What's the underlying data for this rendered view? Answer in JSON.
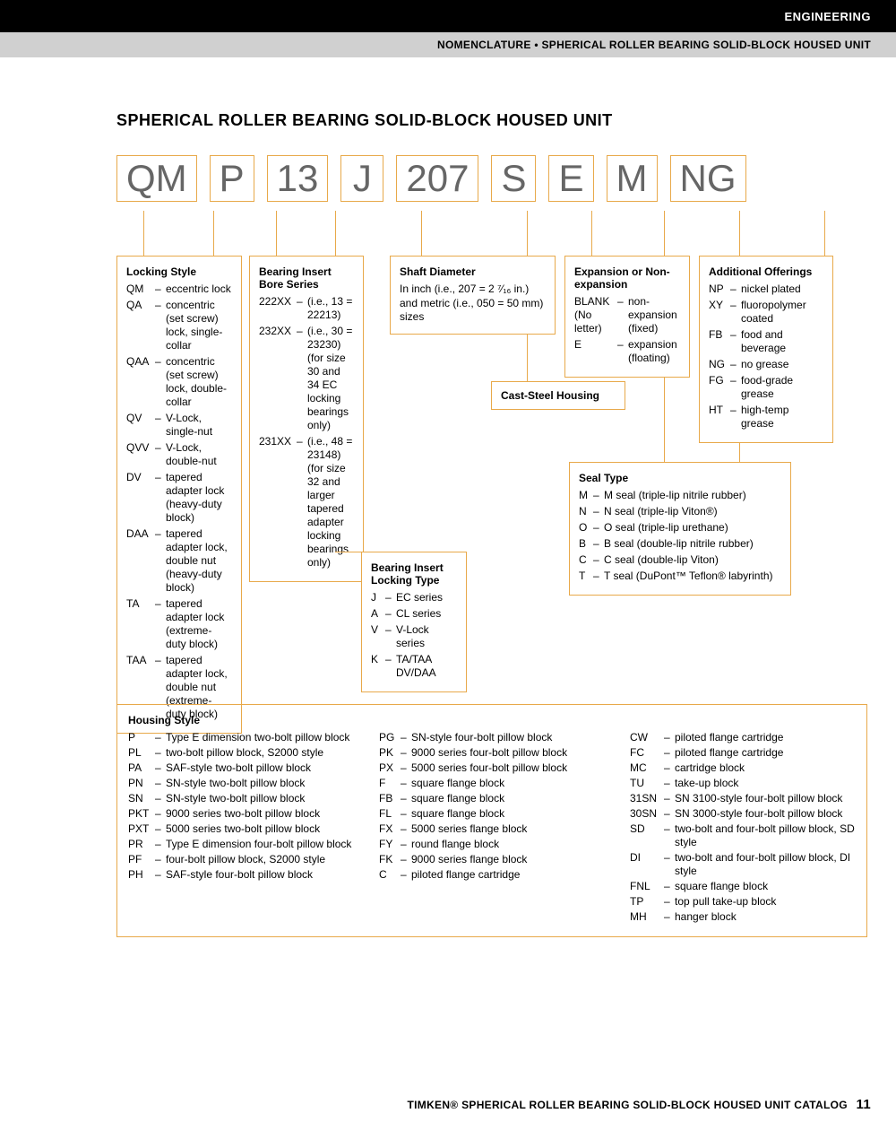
{
  "header": {
    "category": "ENGINEERING",
    "subheader": "NOMENCLATURE • SPHERICAL ROLLER BEARING SOLID-BLOCK HOUSED UNIT"
  },
  "main_title": "SPHERICAL ROLLER BEARING SOLID-BLOCK HOUSED UNIT",
  "code_parts": [
    "QM",
    "P",
    "13",
    "J",
    "207",
    "S",
    "E",
    "M",
    "NG"
  ],
  "boxes": {
    "locking_style": {
      "title": "Locking Style",
      "items": [
        {
          "code": "QM",
          "text": "eccentric lock"
        },
        {
          "code": "QA",
          "text": "concentric (set screw) lock, single-collar"
        },
        {
          "code": "QAA",
          "text": "concentric (set screw) lock, double-collar"
        },
        {
          "code": "QV",
          "text": "V-Lock, single-nut"
        },
        {
          "code": "QVV",
          "text": "V-Lock, double-nut"
        },
        {
          "code": "DV",
          "text": "tapered adapter lock (heavy-duty block)"
        },
        {
          "code": "DAA",
          "text": "tapered adapter lock, double nut (heavy-duty block)"
        },
        {
          "code": "TA",
          "text": "tapered adapter lock (extreme-duty block)"
        },
        {
          "code": "TAA",
          "text": "tapered adapter lock, double nut (extreme-duty block)"
        }
      ]
    },
    "bearing_insert_bore": {
      "title": "Bearing Insert Bore Series",
      "items": [
        {
          "code": "222XX",
          "text": "(i.e., 13 = 22213)"
        },
        {
          "code": "232XX",
          "text": "(i.e., 30 = 23230) (for size 30 and 34 EC locking bearings only)"
        },
        {
          "code": "231XX",
          "text": "(i.e., 48 = 23148) (for size 32 and larger tapered adapter locking bearings only)"
        }
      ]
    },
    "shaft_diameter": {
      "title": "Shaft Diameter",
      "text": "In inch (i.e., 207 = 2 ⁷⁄₁₆ in.) and metric (i.e., 050 = 50 mm) sizes"
    },
    "expansion": {
      "title": "Expansion or Non-expansion",
      "items": [
        {
          "code": "BLANK (No letter)",
          "text": "non-expansion (fixed)"
        },
        {
          "code": "E",
          "text": "expansion (floating)"
        }
      ]
    },
    "additional": {
      "title": "Additional Offerings",
      "items": [
        {
          "code": "NP",
          "text": "nickel plated"
        },
        {
          "code": "XY",
          "text": "fluoropolymer coated"
        },
        {
          "code": "FB",
          "text": "food and beverage"
        },
        {
          "code": "NG",
          "text": "no grease"
        },
        {
          "code": "FG",
          "text": "food-grade grease"
        },
        {
          "code": "HT",
          "text": "high-temp grease"
        }
      ]
    },
    "cast_steel": {
      "title": "Cast-Steel Housing"
    },
    "seal_type": {
      "title": "Seal Type",
      "items": [
        {
          "code": "M",
          "text": "M seal (triple-lip nitrile rubber)"
        },
        {
          "code": "N",
          "text": "N seal (triple-lip Viton®)"
        },
        {
          "code": "O",
          "text": "O seal (triple-lip urethane)"
        },
        {
          "code": "B",
          "text": "B seal (double-lip nitrile rubber)"
        },
        {
          "code": "C",
          "text": "C seal (double-lip Viton)"
        },
        {
          "code": "T",
          "text": "T seal (DuPont™ Teflon® labyrinth)"
        }
      ]
    },
    "bearing_locking_type": {
      "title": "Bearing Insert Locking Type",
      "items": [
        {
          "code": "J",
          "text": "EC series"
        },
        {
          "code": "A",
          "text": "CL series"
        },
        {
          "code": "V",
          "text": "V-Lock series"
        },
        {
          "code": "K",
          "text": "TA/TAA DV/DAA"
        }
      ]
    },
    "housing_style": {
      "title": "Housing Style",
      "col1": [
        {
          "code": "P",
          "text": "Type E dimension two-bolt pillow block"
        },
        {
          "code": "PL",
          "text": "two-bolt pillow block, S2000 style"
        },
        {
          "code": "PA",
          "text": "SAF-style two-bolt pillow block"
        },
        {
          "code": "PN",
          "text": "SN-style two-bolt pillow block"
        },
        {
          "code": "SN",
          "text": "SN-style two-bolt pillow block"
        },
        {
          "code": "PKT",
          "text": "9000 series two-bolt pillow block"
        },
        {
          "code": "PXT",
          "text": "5000 series two-bolt pillow block"
        },
        {
          "code": "PR",
          "text": "Type E dimension four-bolt pillow block"
        },
        {
          "code": "PF",
          "text": "four-bolt pillow block, S2000 style"
        },
        {
          "code": "PH",
          "text": "SAF-style four-bolt pillow block"
        }
      ],
      "col2": [
        {
          "code": "PG",
          "text": "SN-style four-bolt pillow block"
        },
        {
          "code": "PK",
          "text": "9000 series four-bolt pillow block"
        },
        {
          "code": "PX",
          "text": "5000 series four-bolt pillow block"
        },
        {
          "code": "F",
          "text": "square flange block"
        },
        {
          "code": "FB",
          "text": "square flange block"
        },
        {
          "code": "FL",
          "text": "square flange block"
        },
        {
          "code": "FX",
          "text": "5000 series flange block"
        },
        {
          "code": "FY",
          "text": "round flange block"
        },
        {
          "code": "FK",
          "text": "9000 series flange block"
        },
        {
          "code": "C",
          "text": "piloted flange cartridge"
        }
      ],
      "col3": [
        {
          "code": "CW",
          "text": "piloted flange cartridge"
        },
        {
          "code": "FC",
          "text": "piloted flange cartridge"
        },
        {
          "code": "MC",
          "text": "cartridge block"
        },
        {
          "code": "TU",
          "text": "take-up block"
        },
        {
          "code": "31SN",
          "text": "SN 3100-style four-bolt pillow block"
        },
        {
          "code": "30SN",
          "text": "SN 3000-style four-bolt pillow block"
        },
        {
          "code": "SD",
          "text": "two-bolt and four-bolt pillow block, SD style"
        },
        {
          "code": "DI",
          "text": "two-bolt and four-bolt pillow block, DI style"
        },
        {
          "code": "FNL",
          "text": "square flange block"
        },
        {
          "code": "TP",
          "text": "top pull take-up block"
        },
        {
          "code": "MH",
          "text": "hanger block"
        }
      ]
    }
  },
  "footer": {
    "text": "TIMKEN® SPHERICAL ROLLER BEARING SOLID-BLOCK HOUSED UNIT CATALOG",
    "page": "11"
  },
  "colors": {
    "box_border": "#e8a94a",
    "code_text": "#666666",
    "black": "#000000",
    "grey_bar": "#d0d0d0"
  }
}
